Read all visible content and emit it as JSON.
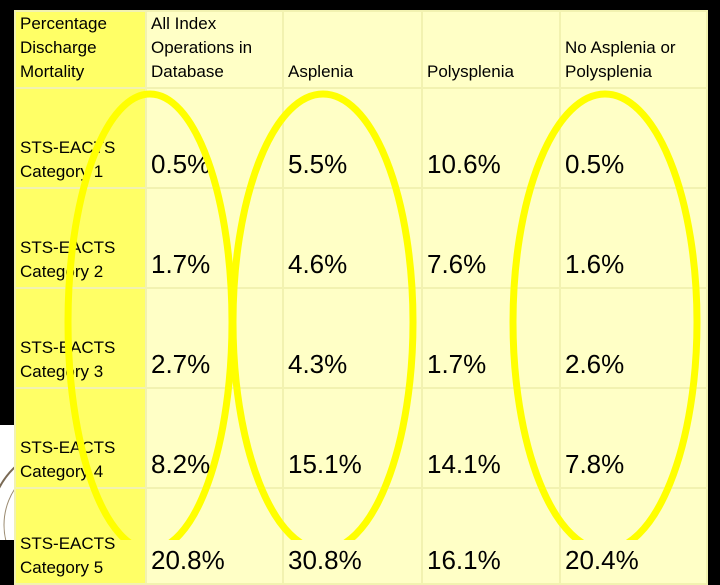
{
  "headers": [
    "Percentage Discharge Mortality",
    "All Index Operations in Database",
    "Asplenia",
    "Polysplenia",
    "No Asplenia or Polysplenia"
  ],
  "rows": [
    {
      "label": "STS-EACTS Category 1",
      "values": [
        "0.5%",
        "5.5%",
        "10.6%",
        "0.5%"
      ]
    },
    {
      "label": "STS-EACTS Category 2",
      "values": [
        "1.7%",
        "4.6%",
        "7.6%",
        "1.6%"
      ]
    },
    {
      "label": "STS-EACTS Category 3",
      "values": [
        "2.7%",
        "4.3%",
        "1.7%",
        "2.6%"
      ]
    },
    {
      "label": "STS-EACTS Category 4",
      "values": [
        "8.2%",
        "15.1%",
        "14.1%",
        "7.8%"
      ]
    },
    {
      "label": "STS-EACTS Category 5",
      "values": [
        "20.8%",
        "30.8%",
        "16.1%",
        "20.4%"
      ]
    }
  ],
  "colors": {
    "header_cell": "#ffff66",
    "data_cell": "#ffffc6",
    "oval_stroke": "#ffff00",
    "background": "#000000"
  },
  "icons": [
    "society-seal-logo"
  ]
}
